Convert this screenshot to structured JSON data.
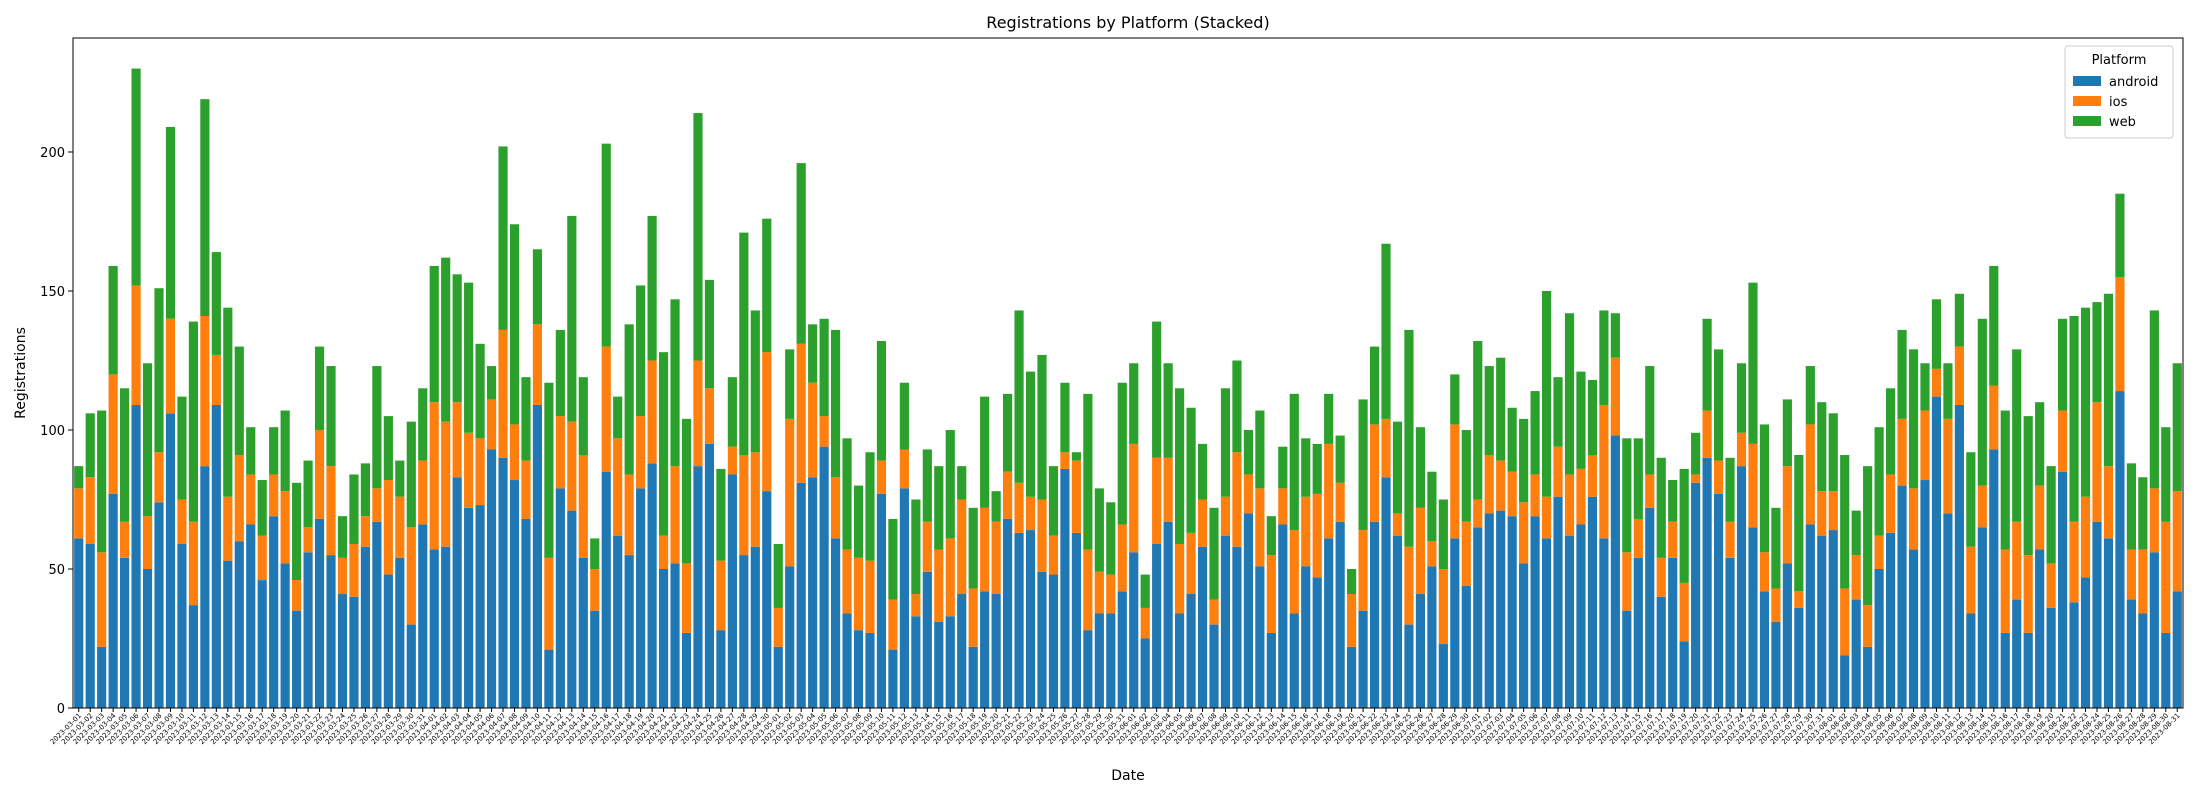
{
  "chart_data": {
    "type": "stacked_bar",
    "title": "Registrations by Platform (Stacked)",
    "xlabel": "Date",
    "ylabel": "Registrations",
    "legend_title": "Platform",
    "legend": "upper right",
    "categories": [
      "2023-03-01",
      "2023-03-02",
      "2023-03-03",
      "2023-03-04",
      "2023-03-05",
      "2023-03-06",
      "2023-03-07",
      "2023-03-08",
      "2023-03-09",
      "2023-03-10",
      "2023-03-11",
      "2023-03-12",
      "2023-03-13",
      "2023-03-14",
      "2023-03-15",
      "2023-03-16",
      "2023-03-17",
      "2023-03-18",
      "2023-03-19",
      "2023-03-20",
      "2023-03-21",
      "2023-03-22",
      "2023-03-23",
      "2023-03-24",
      "2023-03-25",
      "2023-03-26",
      "2023-03-27",
      "2023-03-28",
      "2023-03-29",
      "2023-03-30",
      "2023-03-31",
      "2023-04-01",
      "2023-04-02",
      "2023-04-03",
      "2023-04-04",
      "2023-04-05",
      "2023-04-06",
      "2023-04-07",
      "2023-04-08",
      "2023-04-09",
      "2023-04-10",
      "2023-04-11",
      "2023-04-12",
      "2023-04-13",
      "2023-04-14",
      "2023-04-15",
      "2023-04-16",
      "2023-04-17",
      "2023-04-18",
      "2023-04-19",
      "2023-04-20",
      "2023-04-21",
      "2023-04-22",
      "2023-04-23",
      "2023-04-24",
      "2023-04-25",
      "2023-04-26",
      "2023-04-27",
      "2023-04-28",
      "2023-04-29",
      "2023-04-30",
      "2023-05-01",
      "2023-05-02",
      "2023-05-03",
      "2023-05-04",
      "2023-05-05",
      "2023-05-06",
      "2023-05-07",
      "2023-05-08",
      "2023-05-09",
      "2023-05-10",
      "2023-05-11",
      "2023-05-12",
      "2023-05-13",
      "2023-05-14",
      "2023-05-15",
      "2023-05-16",
      "2023-05-17",
      "2023-05-18",
      "2023-05-19",
      "2023-05-20",
      "2023-05-21",
      "2023-05-22",
      "2023-05-23",
      "2023-05-24",
      "2023-05-25",
      "2023-05-26",
      "2023-05-27",
      "2023-05-28",
      "2023-05-29",
      "2023-05-30",
      "2023-05-31",
      "2023-06-01",
      "2023-06-02",
      "2023-06-03",
      "2023-06-04",
      "2023-06-05",
      "2023-06-06",
      "2023-06-07",
      "2023-06-08",
      "2023-06-09",
      "2023-06-10",
      "2023-06-11",
      "2023-06-12",
      "2023-06-13",
      "2023-06-14",
      "2023-06-15",
      "2023-06-16",
      "2023-06-17",
      "2023-06-18",
      "2023-06-19",
      "2023-06-20",
      "2023-06-21",
      "2023-06-22",
      "2023-06-23",
      "2023-06-24",
      "2023-06-25",
      "2023-06-26",
      "2023-06-27",
      "2023-06-28",
      "2023-06-29",
      "2023-06-30",
      "2023-07-01",
      "2023-07-02",
      "2023-07-03",
      "2023-07-04",
      "2023-07-05",
      "2023-07-06",
      "2023-07-07",
      "2023-07-08",
      "2023-07-09",
      "2023-07-10",
      "2023-07-11",
      "2023-07-12",
      "2023-07-13",
      "2023-07-14",
      "2023-07-15",
      "2023-07-16",
      "2023-07-17",
      "2023-07-18",
      "2023-07-19",
      "2023-07-20",
      "2023-07-21",
      "2023-07-22",
      "2023-07-23",
      "2023-07-24",
      "2023-07-25",
      "2023-07-26",
      "2023-07-27",
      "2023-07-28",
      "2023-07-29",
      "2023-07-30",
      "2023-07-31",
      "2023-08-01",
      "2023-08-02",
      "2023-08-03",
      "2023-08-04",
      "2023-08-05",
      "2023-08-06",
      "2023-08-07",
      "2023-08-08",
      "2023-08-09",
      "2023-08-10",
      "2023-08-11",
      "2023-08-12",
      "2023-08-13",
      "2023-08-14",
      "2023-08-15",
      "2023-08-16",
      "2023-08-17",
      "2023-08-18",
      "2023-08-19",
      "2023-08-20",
      "2023-08-21",
      "2023-08-22",
      "2023-08-23",
      "2023-08-24",
      "2023-08-25",
      "2023-08-26",
      "2023-08-27",
      "2023-08-28",
      "2023-08-29",
      "2023-08-30",
      "2023-08-31"
    ],
    "series": [
      {
        "name": "android",
        "color": "#1f77b4",
        "values": [
          61,
          59,
          22,
          77,
          54,
          109,
          50,
          74,
          106,
          59,
          37,
          87,
          109,
          53,
          60,
          66,
          46,
          69,
          52,
          35,
          56,
          68,
          55,
          41,
          40,
          58,
          67,
          48,
          54,
          30,
          66,
          57,
          58,
          83,
          72,
          73,
          93,
          90,
          82,
          68,
          109,
          21,
          79,
          71,
          54,
          35,
          85,
          62,
          55,
          79,
          88,
          50,
          52,
          27,
          87,
          95,
          28,
          84,
          55,
          58,
          78,
          22,
          51,
          81,
          83,
          94,
          61,
          34,
          28,
          27,
          77,
          21,
          79,
          33,
          49,
          31,
          33,
          41,
          22,
          42,
          41,
          68,
          63,
          64,
          49,
          48,
          86,
          63,
          28,
          34,
          34,
          42,
          56,
          25,
          59,
          67,
          34,
          41,
          58,
          30,
          62,
          58,
          70,
          51,
          27,
          66,
          34,
          51,
          47,
          61,
          67,
          22,
          35,
          67,
          83,
          62,
          30,
          41,
          51,
          23,
          61,
          44,
          65,
          70,
          71,
          69,
          52,
          69,
          61,
          76,
          62,
          66,
          76,
          61,
          98,
          35,
          54,
          72,
          40,
          54,
          24,
          81,
          90,
          77,
          54,
          87,
          65,
          42,
          31,
          52,
          36,
          66,
          62,
          64,
          19,
          39,
          22,
          50,
          63,
          80,
          57,
          82,
          112,
          70,
          109,
          34,
          65,
          93,
          27,
          39,
          27,
          57,
          36,
          85,
          38,
          47,
          67,
          61,
          114,
          39,
          34,
          56,
          27,
          42
        ]
      },
      {
        "name": "ios",
        "color": "#ff7f0e",
        "values": [
          18,
          24,
          34,
          43,
          13,
          43,
          19,
          18,
          34,
          16,
          30,
          54,
          18,
          23,
          31,
          18,
          16,
          15,
          26,
          11,
          9,
          32,
          32,
          13,
          19,
          11,
          12,
          34,
          22,
          35,
          23,
          53,
          45,
          27,
          27,
          24,
          18,
          46,
          20,
          21,
          29,
          33,
          26,
          32,
          37,
          15,
          45,
          35,
          29,
          26,
          37,
          12,
          35,
          25,
          38,
          20,
          25,
          10,
          36,
          34,
          50,
          14,
          53,
          50,
          34,
          11,
          22,
          23,
          26,
          26,
          12,
          18,
          14,
          8,
          18,
          26,
          28,
          34,
          21,
          30,
          26,
          17,
          18,
          12,
          26,
          14,
          6,
          26,
          29,
          15,
          14,
          24,
          39,
          11,
          31,
          23,
          25,
          22,
          17,
          9,
          14,
          34,
          14,
          28,
          28,
          13,
          30,
          25,
          30,
          34,
          14,
          19,
          29,
          35,
          21,
          8,
          28,
          31,
          9,
          27,
          41,
          23,
          10,
          21,
          18,
          16,
          22,
          15,
          15,
          18,
          22,
          20,
          15,
          48,
          28,
          21,
          14,
          12,
          14,
          13,
          21,
          3,
          17,
          12,
          13,
          12,
          30,
          14,
          12,
          35,
          6,
          36,
          16,
          14,
          24,
          16,
          15,
          12,
          21,
          24,
          22,
          25,
          10,
          34,
          21,
          24,
          15,
          23,
          30,
          28,
          28,
          23,
          16,
          22,
          29,
          29,
          43,
          26,
          41,
          18,
          23,
          23,
          40,
          36
        ]
      },
      {
        "name": "web",
        "color": "#2ca02c",
        "values": [
          8,
          23,
          51,
          39,
          48,
          78,
          55,
          59,
          69,
          37,
          72,
          78,
          37,
          68,
          39,
          17,
          20,
          17,
          29,
          35,
          24,
          30,
          36,
          15,
          25,
          19,
          44,
          23,
          13,
          38,
          26,
          49,
          59,
          46,
          54,
          34,
          12,
          66,
          72,
          30,
          27,
          63,
          31,
          74,
          28,
          11,
          73,
          15,
          54,
          47,
          52,
          66,
          60,
          52,
          89,
          39,
          33,
          25,
          80,
          51,
          48,
          23,
          25,
          65,
          21,
          35,
          53,
          40,
          26,
          39,
          43,
          29,
          24,
          34,
          26,
          30,
          39,
          12,
          29,
          40,
          11,
          28,
          62,
          45,
          52,
          25,
          25,
          3,
          56,
          30,
          26,
          51,
          29,
          12,
          49,
          34,
          56,
          45,
          20,
          33,
          39,
          33,
          16,
          28,
          14,
          15,
          49,
          21,
          18,
          18,
          17,
          9,
          47,
          28,
          63,
          33,
          78,
          29,
          25,
          25,
          18,
          33,
          57,
          32,
          37,
          23,
          30,
          30,
          74,
          25,
          58,
          35,
          27,
          34,
          16,
          41,
          29,
          39,
          36,
          15,
          41,
          15,
          33,
          40,
          23,
          25,
          58,
          46,
          29,
          24,
          49,
          21,
          32,
          28,
          48,
          16,
          50,
          39,
          31,
          32,
          50,
          17,
          25,
          20,
          19,
          34,
          60,
          43,
          50,
          62,
          50,
          30,
          35,
          33,
          74,
          68,
          36,
          62,
          30,
          31,
          26,
          64,
          34,
          46
        ]
      }
    ],
    "ylim": [
      0,
      241
    ],
    "yticks": [
      0,
      50,
      100,
      150,
      200
    ]
  }
}
